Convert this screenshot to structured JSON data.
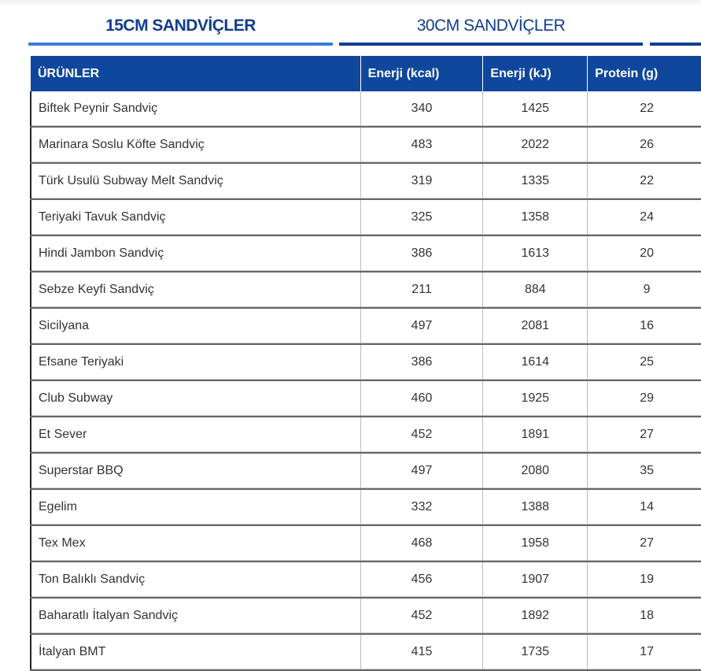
{
  "tabs": [
    {
      "label": "15CM SANDVİÇLER",
      "active": true
    },
    {
      "label": "30CM SANDVİÇLER",
      "active": false
    },
    {
      "label": "",
      "active": false
    }
  ],
  "table": {
    "headers": [
      "ÜRÜNLER",
      "Enerji (kcal)",
      "Enerji (kJ)",
      "Protein (g)"
    ],
    "rows": [
      [
        "Biftek Peynir Sandviç",
        "340",
        "1425",
        "22"
      ],
      [
        "Marinara Soslu Köfte Sandviç",
        "483",
        "2022",
        "26"
      ],
      [
        "Türk Usulü Subway Melt Sandviç",
        "319",
        "1335",
        "22"
      ],
      [
        "Teriyaki Tavuk Sandviç",
        "325",
        "1358",
        "24"
      ],
      [
        "Hindi Jambon Sandviç",
        "386",
        "1613",
        "20"
      ],
      [
        "Sebze Keyfi Sandviç",
        "211",
        "884",
        "9"
      ],
      [
        "Sicilyana",
        "497",
        "2081",
        "16"
      ],
      [
        "Efsane Teriyaki",
        "386",
        "1614",
        "25"
      ],
      [
        "Club Subway",
        "460",
        "1925",
        "29"
      ],
      [
        "Et Sever",
        "452",
        "1891",
        "27"
      ],
      [
        "Superstar BBQ",
        "497",
        "2080",
        "35"
      ],
      [
        "Egelim",
        "332",
        "1388",
        "14"
      ],
      [
        "Tex Mex",
        "468",
        "1958",
        "27"
      ],
      [
        "Ton Balıklı Sandviç",
        "456",
        "1907",
        "19"
      ],
      [
        "Baharatlı İtalyan Sandviç",
        "452",
        "1892",
        "18"
      ],
      [
        "İtalyan BMT",
        "415",
        "1735",
        "17"
      ]
    ]
  }
}
